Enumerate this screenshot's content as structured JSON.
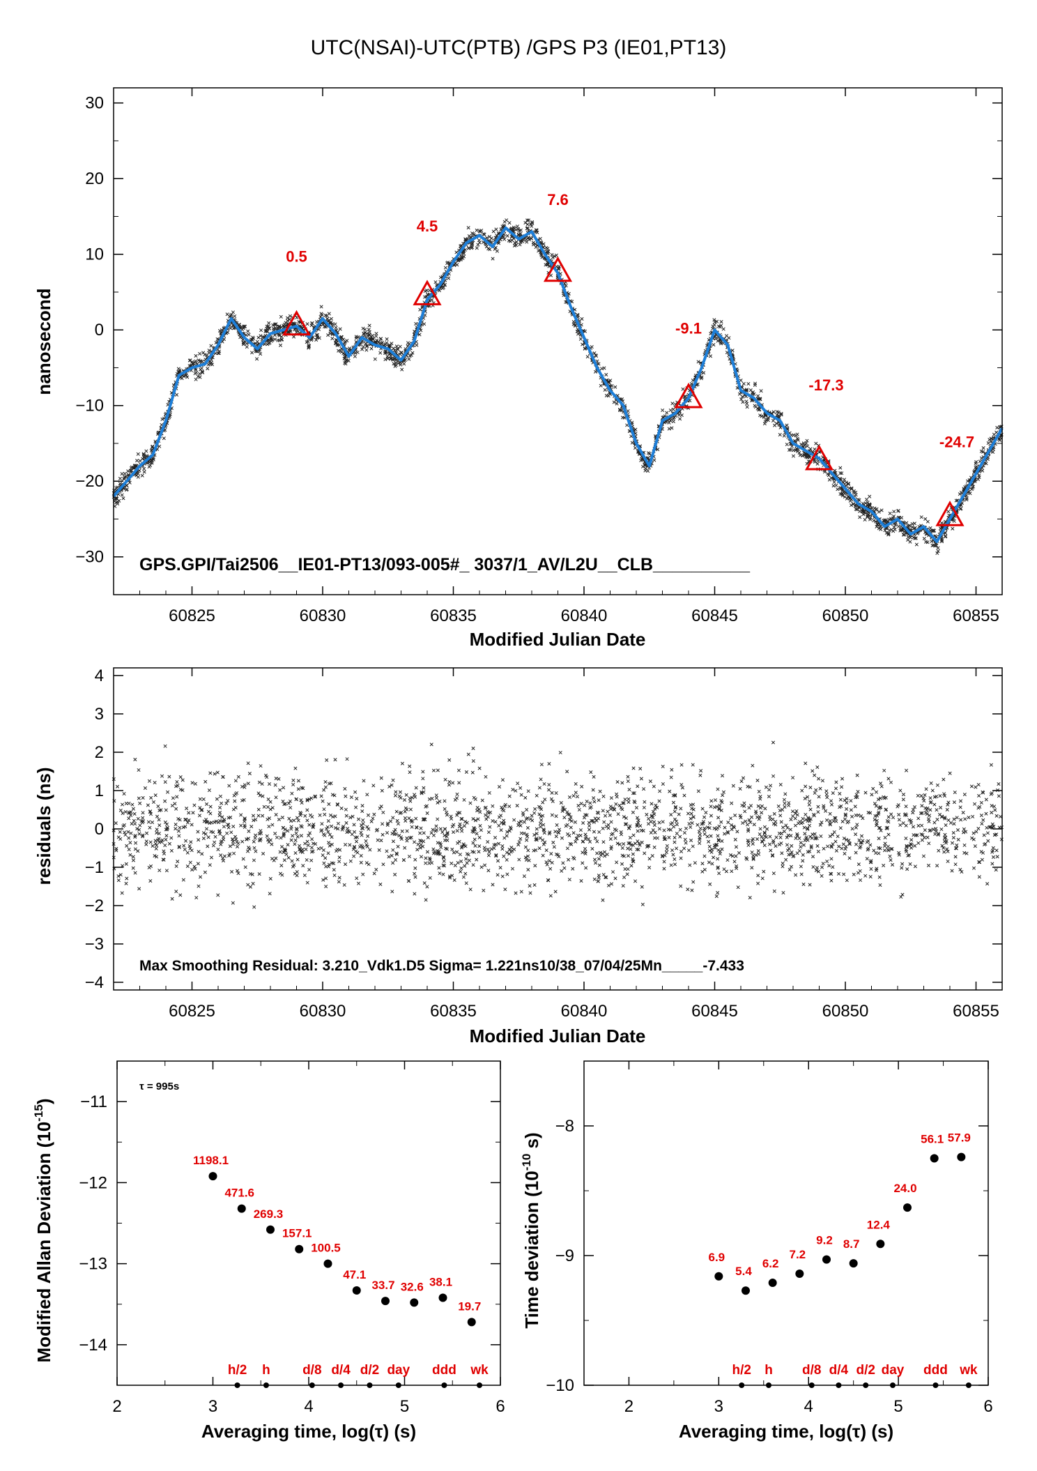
{
  "title": "UTC(NSAI)-UTC(PTB)  /GPS  P3  (IE01,PT13)",
  "chart_data": [
    {
      "id": "main",
      "type": "line",
      "xlabel": "Modified Julian Date",
      "ylabel": "nanosecond",
      "xlim": [
        60822,
        60856
      ],
      "ylim": [
        -35,
        32
      ],
      "xticks": [
        60825,
        60830,
        60835,
        60840,
        60845,
        60850,
        60855
      ],
      "yticks": [
        30,
        20,
        10,
        0,
        -10,
        -20,
        -30
      ],
      "smooth_x": [
        60822,
        60823,
        60823.5,
        60824,
        60824.5,
        60825,
        60825.5,
        60826,
        60826.5,
        60827,
        60827.5,
        60828,
        60828.5,
        60829,
        60829.5,
        60830,
        60830.5,
        60831,
        60831.5,
        60832,
        60832.5,
        60833,
        60833.5,
        60834,
        60834.5,
        60835,
        60835.5,
        60836,
        60836.5,
        60837,
        60837.5,
        60838,
        60838.5,
        60839,
        60839.5,
        60840,
        60840.5,
        60841,
        60841.5,
        60842,
        60842.5,
        60843,
        60843.5,
        60844,
        60844.5,
        60845,
        60845.5,
        60846,
        60846.5,
        60847,
        60847.5,
        60848,
        60848.5,
        60849,
        60849.5,
        60850,
        60850.5,
        60851,
        60851.5,
        60852,
        60852.5,
        60853,
        60853.5,
        60854,
        60854.5,
        60855,
        60855.5,
        60856
      ],
      "smooth_y": [
        -22,
        -18,
        -16.5,
        -12,
        -6,
        -5,
        -4.5,
        -2,
        1.5,
        -1,
        -2.5,
        -0.5,
        0,
        0.5,
        -1,
        1.5,
        -0.5,
        -3.5,
        -1,
        -2,
        -2.5,
        -4,
        -1.5,
        4,
        6,
        9,
        11.5,
        12.5,
        11,
        13.5,
        12,
        13,
        10,
        7.5,
        3,
        -1,
        -5,
        -8,
        -10,
        -15,
        -18,
        -12,
        -11,
        -9,
        -5,
        0,
        -2,
        -8,
        -9,
        -11,
        -12,
        -15,
        -16,
        -17,
        -19,
        -21,
        -23,
        -24,
        -26,
        -25,
        -27,
        -26,
        -28,
        -25,
        -22,
        -19,
        -16,
        -13
      ],
      "markers": [
        {
          "x": 60829,
          "y": 0.5,
          "label": "0.5"
        },
        {
          "x": 60834,
          "y": 4.5,
          "label": "4.5"
        },
        {
          "x": 60839,
          "y": 7.6,
          "label": "7.6"
        },
        {
          "x": 60844,
          "y": -9.1,
          "label": "-9.1"
        },
        {
          "x": 60849,
          "y": -17.3,
          "label": "-17.3"
        },
        {
          "x": 60854,
          "y": -24.7,
          "label": "-24.7"
        }
      ],
      "annotation": "GPS.GPI/Tai2506__IE01-PT13/093-005#_  3037/1_AV/L2U__CLB__________",
      "colors": {
        "smooth": "#1e7fd8",
        "points": "#000000",
        "markers": "#e00000"
      }
    },
    {
      "id": "residuals",
      "type": "scatter",
      "xlabel": "Modified Julian Date",
      "ylabel": "residuals (ns)",
      "xlim": [
        60822,
        60856
      ],
      "ylim": [
        -4.2,
        4.2
      ],
      "xticks": [
        60825,
        60830,
        60835,
        60840,
        60845,
        60850,
        60855
      ],
      "yticks": [
        4,
        3,
        2,
        1,
        0,
        -1,
        -2,
        -3,
        -4
      ],
      "annotation": "Max Smoothing Residual: 3.210_Vdk1.D5  Sigma= 1.221ns10/38_07/04/25Mn_____-7.433"
    },
    {
      "id": "mdev",
      "type": "scatter",
      "xlabel": "Averaging time, log(τ) (s)",
      "ylabel": "Modified Allan Deviation (10",
      "ylabel_sup": "-15",
      "ylabel_end": ")",
      "xlim": [
        2,
        6
      ],
      "ylim": [
        -14.5,
        -10.5
      ],
      "xticks": [
        2,
        3,
        4,
        5,
        6
      ],
      "yticks": [
        -11,
        -12,
        -13,
        -14
      ],
      "tau_label": "τ = 995s",
      "x": [
        3.0,
        3.3,
        3.6,
        3.9,
        4.2,
        4.5,
        4.8,
        5.1,
        5.4,
        5.7
      ],
      "y": [
        -11.92,
        -12.32,
        -12.58,
        -12.82,
        -13.0,
        -13.33,
        -13.46,
        -13.48,
        -13.42,
        -13.72
      ],
      "labels": [
        "1198.1",
        "471.6",
        "269.3",
        "157.1",
        "100.5",
        "47.1",
        "33.7",
        "32.6",
        "38.1",
        "19.7"
      ],
      "time_marks": [
        {
          "x": 3.255,
          "label": "h/2"
        },
        {
          "x": 3.556,
          "label": "h"
        },
        {
          "x": 4.035,
          "label": "d/8"
        },
        {
          "x": 4.335,
          "label": "d/4"
        },
        {
          "x": 4.636,
          "label": "d/2"
        },
        {
          "x": 4.937,
          "label": "day"
        },
        {
          "x": 5.414,
          "label": "ddd"
        },
        {
          "x": 5.782,
          "label": "wk"
        }
      ]
    },
    {
      "id": "tdev",
      "type": "scatter",
      "xlabel": "Averaging time, log(τ) (s)",
      "ylabel": "Time deviation (10",
      "ylabel_sup": "-10",
      "ylabel_end": " s)",
      "xlim": [
        1.5,
        6
      ],
      "ylim": [
        -10,
        -7.5
      ],
      "xticks": [
        2,
        3,
        4,
        5,
        6
      ],
      "yticks": [
        -8,
        -9,
        -10
      ],
      "x": [
        3.0,
        3.3,
        3.6,
        3.9,
        4.2,
        4.5,
        4.8,
        5.1,
        5.4,
        5.7
      ],
      "y": [
        -9.16,
        -9.27,
        -9.21,
        -9.14,
        -9.03,
        -9.06,
        -8.91,
        -8.63,
        -8.25,
        -8.24
      ],
      "labels": [
        "6.9",
        "5.4",
        "6.2",
        "7.2",
        "9.2",
        "8.7",
        "12.4",
        "24.0",
        "56.1",
        "57.9"
      ],
      "time_marks": [
        {
          "x": 3.255,
          "label": "h/2"
        },
        {
          "x": 3.556,
          "label": "h"
        },
        {
          "x": 4.035,
          "label": "d/8"
        },
        {
          "x": 4.335,
          "label": "d/4"
        },
        {
          "x": 4.636,
          "label": "d/2"
        },
        {
          "x": 4.937,
          "label": "day"
        },
        {
          "x": 5.414,
          "label": "ddd"
        },
        {
          "x": 5.782,
          "label": "wk"
        }
      ]
    }
  ]
}
